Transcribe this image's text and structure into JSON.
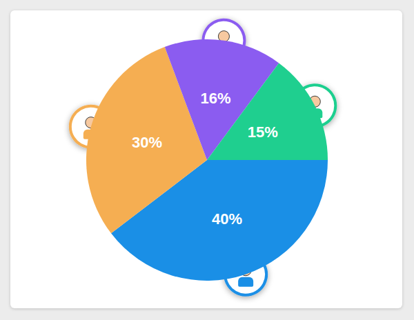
{
  "chart_data": {
    "type": "pie",
    "values": [
      40,
      30,
      16,
      15
    ],
    "value_labels": [
      "40%",
      "30%",
      "16%",
      "15%"
    ],
    "colors": [
      "#1a8fe6",
      "#f5ae52",
      "#8b5cf0",
      "#1fcf8f"
    ],
    "data_labels": true
  }
}
